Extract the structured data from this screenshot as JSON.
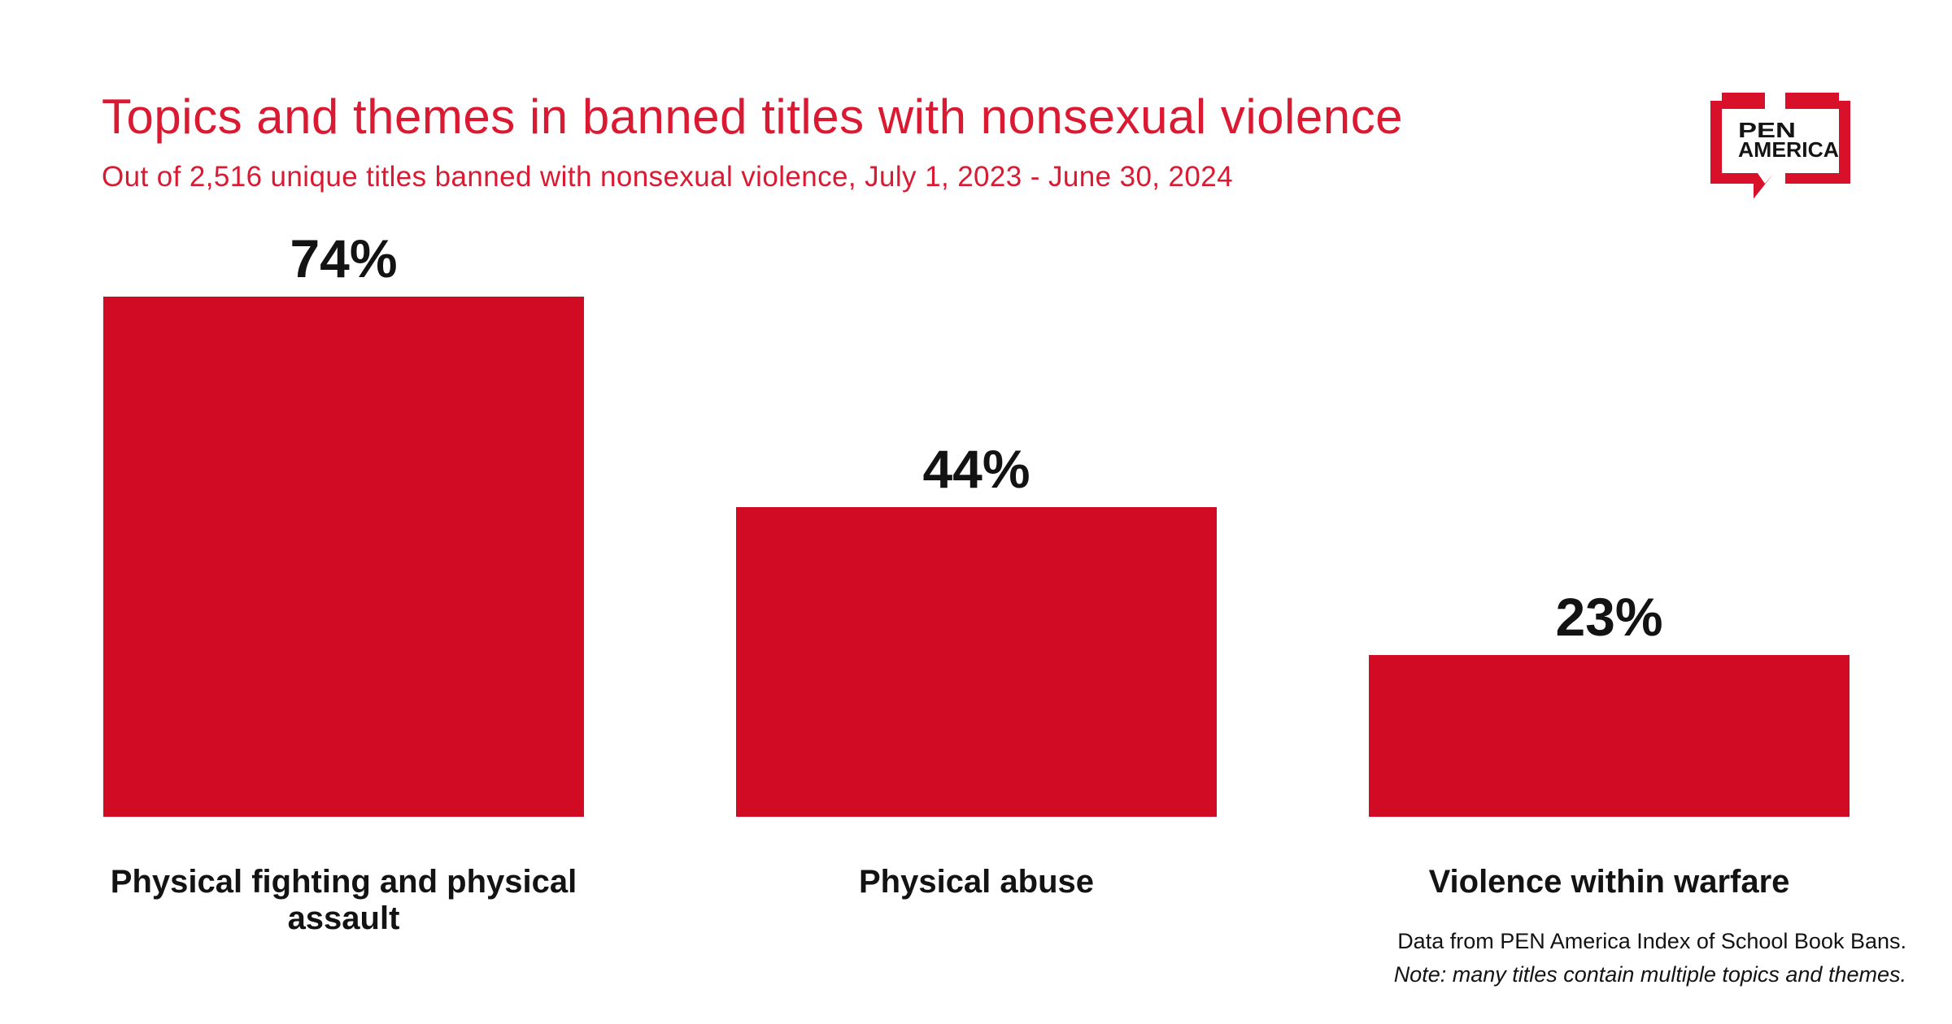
{
  "header": {
    "title": "Topics and themes in banned titles with nonsexual violence",
    "subtitle": "Out of 2,516 unique titles banned with nonsexual violence, July 1, 2023 - June 30, 2024"
  },
  "logo": {
    "line1": "PEN",
    "line2": "AMERICA"
  },
  "chart_data": {
    "type": "bar",
    "title": "Topics and themes in banned titles with nonsexual violence",
    "subtitle": "Out of 2,516 unique titles banned with nonsexual violence, July 1, 2023 - June 30, 2024",
    "categories": [
      "Physical fighting and physical assault",
      "Physical abuse",
      "Violence within warfare"
    ],
    "values": [
      74,
      44,
      23
    ],
    "display_values": [
      "74%",
      "44%",
      "23%"
    ],
    "xlabel": "",
    "ylabel": "",
    "ylim": [
      0,
      100
    ],
    "unit": "percent of titles",
    "grid": false,
    "legend": false,
    "bar_color": "#d20b24",
    "value_label_position": "above-bar"
  },
  "footnote": {
    "line1": "Data from PEN America Index of School Book Bans.",
    "line2": "Note: many titles contain multiple topics and themes."
  },
  "colors": {
    "brand_red": "#d20b24",
    "title_red": "#da1a32",
    "text_black": "#131313",
    "background": "#ffffff"
  }
}
